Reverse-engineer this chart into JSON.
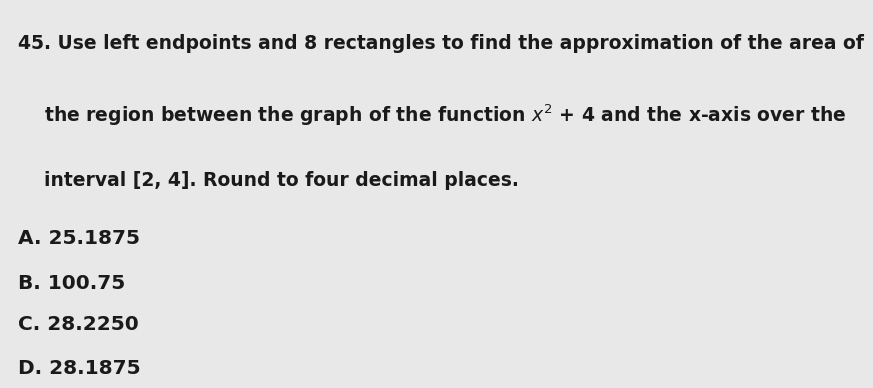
{
  "background_color": "#e8e8e8",
  "question_number": "45.",
  "question_line1": " Use left endpoints and 8 rectangles to find the approximation of the area of",
  "question_line2": "the region between the graph of the function x",
  "question_line2_super": "2",
  "question_line2_rest": " + 4 and the x-axis over the",
  "question_line3": "interval [2, 4]. Round to four decimal places.",
  "choices": [
    "A. 25.1875",
    "B. 100.75",
    "C. 28.2250",
    "D. 28.1875"
  ],
  "text_color": "#1a1a1a",
  "font_size_question": 13.5,
  "font_size_choices": 14.5
}
